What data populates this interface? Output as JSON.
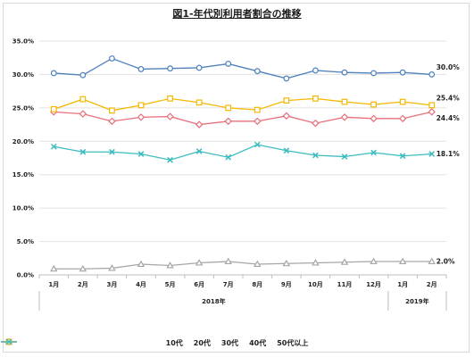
{
  "chart_data": {
    "type": "line",
    "title": "図1-年代別利用者割合の推移",
    "categories": [
      "1月",
      "2月",
      "3月",
      "4月",
      "5月",
      "6月",
      "7月",
      "8月",
      "9月",
      "10月",
      "11月",
      "12月",
      "1月",
      "2月"
    ],
    "year_labels": [
      {
        "label": "2018年",
        "from": 0,
        "to": 11
      },
      {
        "label": "2019年",
        "from": 12,
        "to": 13
      }
    ],
    "y_ticks": [
      "0.0%",
      "5.0%",
      "10.0%",
      "15.0%",
      "20.0%",
      "25.0%",
      "30.0%",
      "35.0%"
    ],
    "ylim": [
      0,
      35
    ],
    "grid": true,
    "legend_position": "bottom",
    "series": [
      {
        "name": "10代",
        "color": "#a6a6a6",
        "marker": "triangle",
        "values": [
          0.9,
          0.9,
          1.0,
          1.6,
          1.4,
          1.8,
          2.0,
          1.6,
          1.7,
          1.8,
          1.9,
          2.0,
          2.0,
          2.0
        ],
        "end_label": "2.0%"
      },
      {
        "name": "20代",
        "color": "#4f81bd",
        "marker": "circle",
        "values": [
          30.2,
          29.9,
          32.4,
          30.8,
          30.9,
          31.0,
          31.6,
          30.5,
          29.4,
          30.6,
          30.3,
          30.2,
          30.3,
          30.0
        ],
        "end_label": "30.0%"
      },
      {
        "name": "30代",
        "color": "#e8707c",
        "marker": "diamond",
        "values": [
          24.4,
          24.1,
          23.0,
          23.6,
          23.7,
          22.5,
          23.0,
          23.0,
          23.8,
          22.7,
          23.6,
          23.4,
          23.4,
          24.4
        ],
        "end_label": "24.4%"
      },
      {
        "name": "40代",
        "color": "#f5b800",
        "marker": "square",
        "values": [
          24.8,
          26.3,
          24.6,
          25.4,
          26.4,
          25.8,
          25.0,
          24.7,
          26.1,
          26.4,
          25.9,
          25.5,
          25.9,
          25.4
        ],
        "end_label": "25.4%"
      },
      {
        "name": "50代以上",
        "color": "#3cbcc0",
        "marker": "x",
        "values": [
          19.2,
          18.4,
          18.4,
          18.1,
          17.2,
          18.5,
          17.6,
          19.5,
          18.6,
          17.9,
          17.7,
          18.3,
          17.8,
          18.1
        ],
        "end_label": "18.1%"
      }
    ]
  }
}
